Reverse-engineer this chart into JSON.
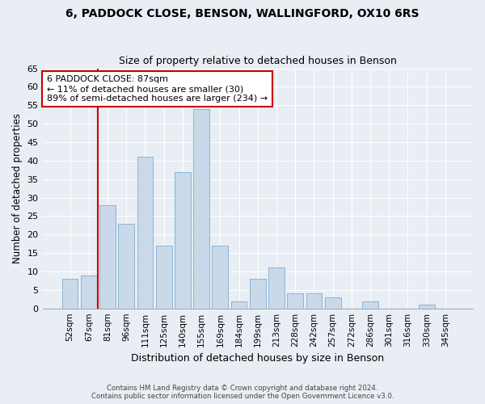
{
  "title1": "6, PADDOCK CLOSE, BENSON, WALLINGFORD, OX10 6RS",
  "title2": "Size of property relative to detached houses in Benson",
  "xlabel": "Distribution of detached houses by size in Benson",
  "ylabel": "Number of detached properties",
  "categories": [
    "52sqm",
    "67sqm",
    "81sqm",
    "96sqm",
    "111sqm",
    "125sqm",
    "140sqm",
    "155sqm",
    "169sqm",
    "184sqm",
    "199sqm",
    "213sqm",
    "228sqm",
    "242sqm",
    "257sqm",
    "272sqm",
    "286sqm",
    "301sqm",
    "316sqm",
    "330sqm",
    "345sqm"
  ],
  "values": [
    8,
    9,
    28,
    23,
    41,
    17,
    37,
    54,
    17,
    2,
    8,
    11,
    4,
    4,
    3,
    0,
    2,
    0,
    0,
    1,
    0
  ],
  "bar_color": "#c9d9ea",
  "bar_edge_color": "#8ab4d4",
  "vline_color": "#cc0000",
  "annotation_text": "6 PADDOCK CLOSE: 87sqm\n← 11% of detached houses are smaller (30)\n89% of semi-detached houses are larger (234) →",
  "annotation_box_color": "white",
  "annotation_box_edge_color": "#cc0000",
  "ylim": [
    0,
    65
  ],
  "yticks": [
    0,
    5,
    10,
    15,
    20,
    25,
    30,
    35,
    40,
    45,
    50,
    55,
    60,
    65
  ],
  "footer1": "Contains HM Land Registry data © Crown copyright and database right 2024.",
  "footer2": "Contains public sector information licensed under the Open Government Licence v3.0.",
  "bg_color": "#e8eef4",
  "grid_color": "#ffffff",
  "bar_width": 0.85
}
